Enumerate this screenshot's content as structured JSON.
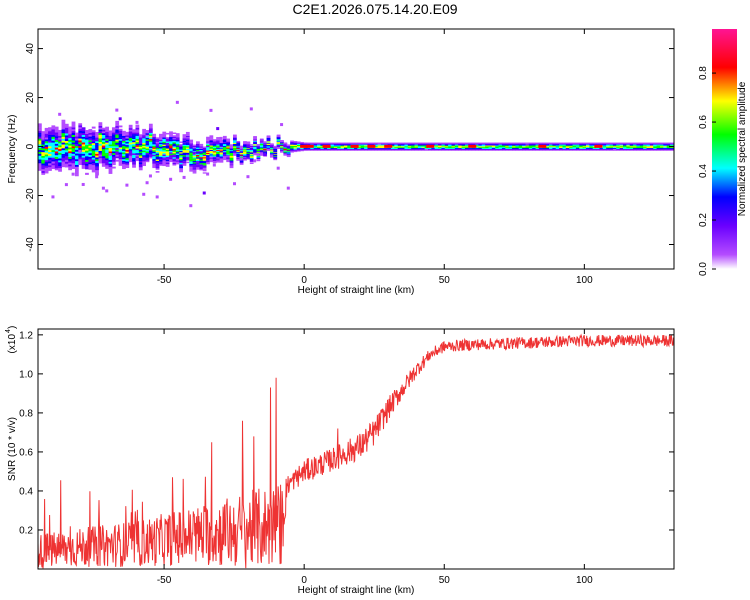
{
  "title": "C2E1.2026.075.14.20.E09",
  "chart_data": [
    {
      "type": "heatmap",
      "xlabel": "Height of straight line (km)",
      "ylabel": "Frequency (Hz)",
      "xlim": [
        -95,
        132
      ],
      "ylim": [
        -50,
        48
      ],
      "xticks": [
        -50,
        0,
        50,
        100
      ],
      "yticks": [
        -40,
        -20,
        0,
        20,
        40
      ],
      "colorbar": {
        "label": "Normalized spectral amplitude",
        "range": [
          0,
          0.98
        ],
        "ticks": [
          0.0,
          0.2,
          0.4,
          0.6,
          0.8
        ],
        "colormap": [
          "#ffffff",
          "#b44cff",
          "#6a00ff",
          "#0000ff",
          "#00ffff",
          "#00ff00",
          "#ffff00",
          "#ff0000",
          "#ff1493"
        ]
      },
      "ridge": {
        "description": "narrow band near 0 Hz",
        "x": [
          -95,
          -80,
          -60,
          -40,
          -20,
          -5,
          0,
          20,
          40,
          60,
          80,
          100,
          130
        ],
        "center_freq": [
          -1,
          -1,
          0,
          -3,
          -1,
          0,
          0,
          0,
          0,
          0,
          0,
          0,
          0
        ],
        "spread_hz": [
          12,
          12,
          10,
          8,
          5,
          3,
          2,
          2,
          2,
          2,
          2,
          2,
          2
        ]
      }
    },
    {
      "type": "line",
      "xlabel": "Height of straight line (km)",
      "ylabel": "SNR (10 * v/v)",
      "y_multiplier": "(x10",
      "y_multiplier_exp": "4",
      "xlim": [
        -95,
        132
      ],
      "ylim": [
        0,
        1.23
      ],
      "xticks": [
        -50,
        0,
        50,
        100
      ],
      "yticks": [
        0.2,
        0.4,
        0.6,
        0.8,
        1.0,
        1.2
      ],
      "color": "#ee3333",
      "series": [
        {
          "description": "noisy SNR trace",
          "x": [
            -95,
            -80,
            -60,
            -40,
            -20,
            -8,
            -6,
            0,
            10,
            20,
            25,
            30,
            35,
            40,
            45,
            50,
            60,
            80,
            100,
            132
          ],
          "mean": [
            0.09,
            0.11,
            0.13,
            0.17,
            0.2,
            0.23,
            0.43,
            0.5,
            0.56,
            0.63,
            0.7,
            0.82,
            0.92,
            1.02,
            1.1,
            1.14,
            1.15,
            1.16,
            1.17,
            1.17
          ],
          "noise": [
            0.09,
            0.1,
            0.12,
            0.15,
            0.2,
            0.22,
            0.05,
            0.06,
            0.06,
            0.07,
            0.07,
            0.06,
            0.05,
            0.04,
            0.03,
            0.03,
            0.03,
            0.03,
            0.03,
            0.03
          ],
          "spikes": [
            {
              "x": -47,
              "y": 0.47
            },
            {
              "x": -33,
              "y": 0.65
            },
            {
              "x": -22,
              "y": 0.76
            },
            {
              "x": -12,
              "y": 0.93
            },
            {
              "x": -10,
              "y": 0.98
            },
            {
              "x": 12,
              "y": 0.72
            }
          ]
        }
      ]
    }
  ]
}
